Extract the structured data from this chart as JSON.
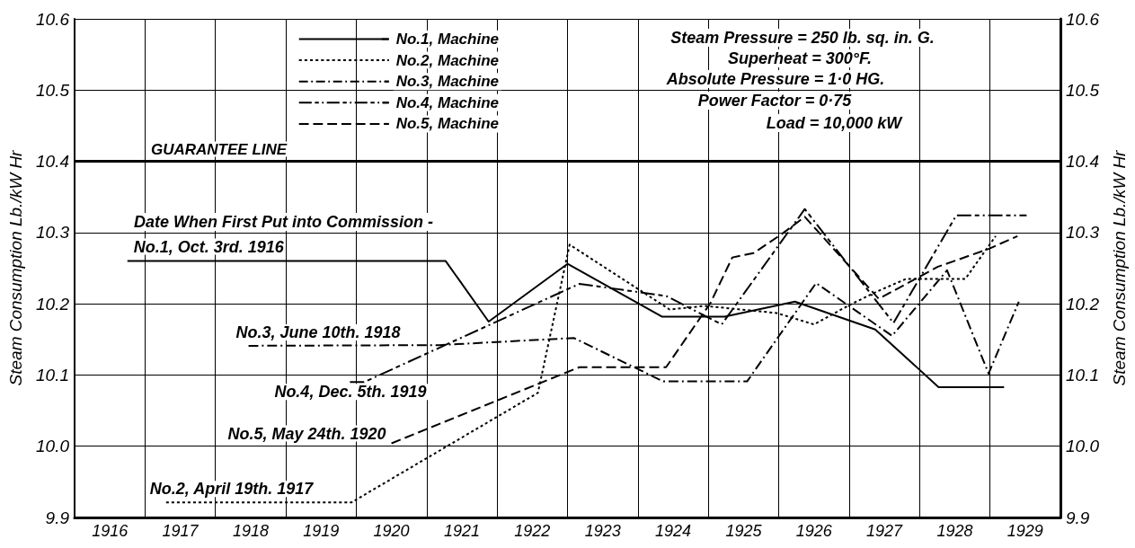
{
  "chart_data": {
    "type": "line",
    "xlim": [
      1916,
      1930
    ],
    "xticks": [
      {
        "value": 1916,
        "label": null
      },
      {
        "value": 1916.5,
        "label": "1916"
      },
      {
        "value": 1917,
        "label": null
      },
      {
        "value": 1917.5,
        "label": "1917"
      },
      {
        "value": 1918,
        "label": null
      },
      {
        "value": 1918.5,
        "label": "1918"
      },
      {
        "value": 1919,
        "label": null
      },
      {
        "value": 1919.5,
        "label": "1919"
      },
      {
        "value": 1920,
        "label": null
      },
      {
        "value": 1920.5,
        "label": "1920"
      },
      {
        "value": 1921,
        "label": null
      },
      {
        "value": 1921.5,
        "label": "1921"
      },
      {
        "value": 1922,
        "label": null
      },
      {
        "value": 1922.5,
        "label": "1922"
      },
      {
        "value": 1923,
        "label": null
      },
      {
        "value": 1923.5,
        "label": "1923"
      },
      {
        "value": 1924,
        "label": null
      },
      {
        "value": 1924.5,
        "label": "1924"
      },
      {
        "value": 1925,
        "label": null
      },
      {
        "value": 1925.5,
        "label": "1925"
      },
      {
        "value": 1926,
        "label": null
      },
      {
        "value": 1926.5,
        "label": "1926"
      },
      {
        "value": 1927,
        "label": null
      },
      {
        "value": 1927.5,
        "label": "1927"
      },
      {
        "value": 1928,
        "label": null
      },
      {
        "value": 1928.5,
        "label": "1928"
      },
      {
        "value": 1929,
        "label": null
      },
      {
        "value": 1929.5,
        "label": "1929"
      },
      {
        "value": 1930,
        "label": null
      }
    ],
    "ylim": [
      9.9,
      10.6
    ],
    "yticks": [
      9.9,
      {
        "value": 10.0,
        "label": "10.0"
      },
      10.1,
      10.2,
      10.3,
      10.4,
      10.5,
      10.6
    ],
    "y2lim": [
      9.9,
      10.6
    ],
    "y2ticks": [
      9.9,
      {
        "value": 10.0,
        "label": "10.0"
      },
      10.1,
      10.2,
      10.3,
      10.4,
      10.5,
      10.6
    ],
    "ylabel": "Steam Consumption Lb./kW Hr",
    "y2label": "Steam Consumption Lb./kW Hr",
    "grid": true,
    "legend": "top left",
    "ref_lines": [
      {
        "axis": "y",
        "value": 10.4,
        "label": "GUARANTEE LINE",
        "color": "#000000",
        "line_style": "solid"
      }
    ],
    "annotations": [
      "Steam Pressure = 250 lb. sq. in. G.",
      "Superheat = 300°F.",
      "Absolute Pressure = 1·0 HG.",
      "Power Factor = 0·75",
      "Load = 10,000 kW",
      "Date When First Put into Commission -",
      {
        "text": "No.1, Oct. 3rd. 1916",
        "x": 1916.75,
        "y": 10.26
      },
      {
        "text": "No.3, June 10th. 1918",
        "x": 1918.47,
        "y": 10.141
      },
      {
        "text": "No.4, Dec. 5th. 1919",
        "x": 1919.91,
        "y": 10.09
      },
      {
        "text": "No.5, May 24th. 1920",
        "x": 1920.5,
        "y": 10.004
      },
      {
        "text": "No.2, April 19th. 1917",
        "x": 1917.3,
        "y": 9.921
      }
    ],
    "series": [
      {
        "name": "No.1, Machine",
        "color": "#000000",
        "line_style": "solid",
        "x": [
          1916.75,
          1921.27,
          1921.88,
          1923.0,
          1924.34,
          1925.23,
          1926.23,
          1927.37,
          1928.27,
          1929.2
        ],
        "values": [
          10.26,
          10.26,
          10.175,
          10.256,
          10.182,
          10.182,
          10.203,
          10.164,
          10.083,
          10.083
        ]
      },
      {
        "name": "No.2, Machine",
        "color": "#000000",
        "line_style": "dotted",
        "x": [
          1917.3,
          1919.93,
          1922.58,
          1923.03,
          1924.45,
          1924.95,
          1925.97,
          1926.5,
          1927.0,
          1927.39,
          1927.81,
          1928.65,
          1929.08
        ],
        "values": [
          9.921,
          9.921,
          10.075,
          10.283,
          10.192,
          10.197,
          10.187,
          10.171,
          10.198,
          10.217,
          10.235,
          10.235,
          10.295
        ]
      },
      {
        "name": "No.3, Machine",
        "color": "#000000",
        "line_style": "dashdot",
        "x": [
          1918.47,
          1921.18,
          1923.09,
          1924.36,
          1925.55,
          1926.53,
          1927.61,
          1928.39,
          1928.98,
          1929.41
        ],
        "values": [
          10.141,
          10.142,
          10.152,
          10.091,
          10.091,
          10.229,
          10.155,
          10.247,
          10.102,
          10.203
        ]
      },
      {
        "name": "No.4, Machine",
        "color": "#000000",
        "line_style": "longdashdot",
        "x": [
          1919.91,
          1920.11,
          1923.17,
          1924.4,
          1925.19,
          1926.37,
          1927.63,
          1928.52,
          1929.52
        ],
        "values": [
          10.09,
          10.09,
          10.228,
          10.211,
          10.171,
          10.333,
          10.173,
          10.324,
          10.324
        ]
      },
      {
        "name": "No.5, Machine",
        "color": "#000000",
        "line_style": "dashed",
        "x": [
          1920.5,
          1923.17,
          1924.4,
          1925.03,
          1925.34,
          1925.64,
          1926.03,
          1926.37,
          1927.42,
          1928.26,
          1928.98,
          1929.39
        ],
        "values": [
          10.004,
          10.111,
          10.111,
          10.201,
          10.265,
          10.271,
          10.297,
          10.322,
          10.207,
          10.252,
          10.277,
          10.295
        ]
      }
    ]
  }
}
